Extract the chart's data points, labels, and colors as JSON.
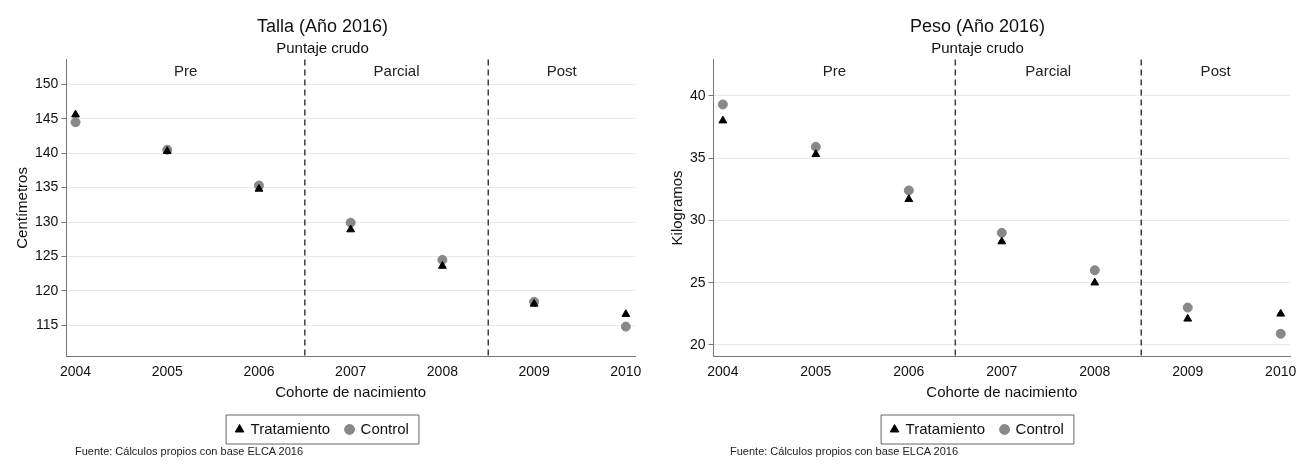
{
  "chart_data": [
    {
      "type": "scatter",
      "title": "Talla (Año 2016)",
      "subtitle": "Puntaje crudo",
      "xlabel": "Cohorte de nacimiento",
      "ylabel": "Centímetros",
      "x": [
        2004,
        2005,
        2006,
        2007,
        2008,
        2009,
        2010
      ],
      "series": [
        {
          "name": "Tratamiento",
          "color": "#000000",
          "marker": "triangle",
          "values": [
            145.6,
            140.3,
            134.8,
            128.9,
            123.6,
            118.1,
            116.6
          ]
        },
        {
          "name": "Control",
          "color": "#888888",
          "marker": "circle",
          "values": [
            144.5,
            140.5,
            135.3,
            129.9,
            124.5,
            118.4,
            114.8
          ]
        }
      ],
      "xlim": [
        2003.9,
        2010.1
      ],
      "xticks": [
        2004,
        2005,
        2006,
        2007,
        2008,
        2009,
        2010
      ],
      "ylim": [
        110.5,
        153.6
      ],
      "yticks": [
        115,
        120,
        125,
        130,
        135,
        140,
        145,
        150
      ],
      "grid": "y",
      "legend": "bottom",
      "ref_lines": [
        {
          "axis": "x",
          "value": 2006.5,
          "line_style": "dashed",
          "color": "#404040"
        },
        {
          "axis": "x",
          "value": 2008.5,
          "line_style": "dashed",
          "color": "#404040"
        }
      ],
      "annotations": [
        "Pre",
        "Parcial",
        "Post",
        "Fuente: Cálculos propios con base ELCA 2016"
      ]
    },
    {
      "type": "scatter",
      "title": "Peso (Año 2016)",
      "subtitle": "Puntaje crudo",
      "xlabel": "Cohorte de nacimiento",
      "ylabel": "Kilogramos",
      "x": [
        2004,
        2005,
        2006,
        2007,
        2008,
        2009,
        2010
      ],
      "series": [
        {
          "name": "Tratamiento",
          "color": "#000000",
          "marker": "triangle",
          "values": [
            38.0,
            35.3,
            31.7,
            28.3,
            25.0,
            22.1,
            22.5
          ]
        },
        {
          "name": "Control",
          "color": "#888888",
          "marker": "circle",
          "values": [
            39.3,
            35.9,
            32.4,
            29.0,
            26.0,
            23.0,
            20.9
          ]
        }
      ],
      "xlim": [
        2003.9,
        2010.1
      ],
      "xticks": [
        2004,
        2005,
        2006,
        2007,
        2008,
        2009,
        2010
      ],
      "ylim": [
        19.1,
        42.9
      ],
      "yticks": [
        20,
        25,
        30,
        35,
        40
      ],
      "grid": "y",
      "legend": "bottom",
      "ref_lines": [
        {
          "axis": "x",
          "value": 2006.5,
          "line_style": "dashed",
          "color": "#404040"
        },
        {
          "axis": "x",
          "value": 2008.5,
          "line_style": "dashed",
          "color": "#404040"
        }
      ],
      "annotations": [
        "Pre",
        "Parcial",
        "Post",
        "Fuente: Cálculos propios con base ELCA 2016"
      ]
    }
  ]
}
